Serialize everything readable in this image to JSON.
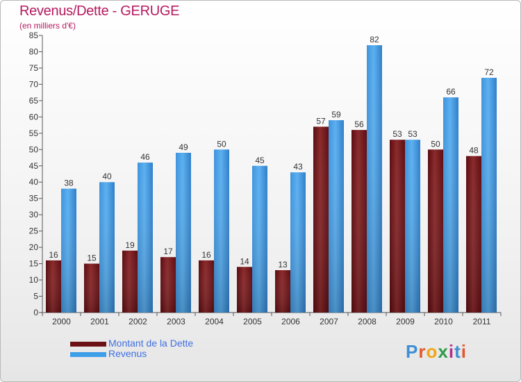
{
  "header": {
    "title": "Revenus/Dette - GERUGE",
    "subtitle": "(en milliers d'€)"
  },
  "colors": {
    "title": "#b5195f",
    "dette": "#6b1014",
    "revenus": "#3f9ee8",
    "legend_text": "#3f6fe0",
    "axis": "#555555"
  },
  "chart_data": {
    "type": "bar",
    "title": "Revenus/Dette - GERUGE",
    "subtitle": "(en milliers d'€)",
    "xlabel": "",
    "ylabel": "",
    "ylim": [
      0,
      85
    ],
    "yticks": [
      0,
      5,
      10,
      15,
      20,
      25,
      30,
      35,
      40,
      45,
      50,
      55,
      60,
      65,
      70,
      75,
      80,
      85
    ],
    "grid": false,
    "legend_position": "bottom-left",
    "categories": [
      "2000",
      "2001",
      "2002",
      "2003",
      "2004",
      "2005",
      "2006",
      "2007",
      "2008",
      "2009",
      "2010",
      "2011"
    ],
    "series": [
      {
        "name": "Montant de la Dette",
        "values": [
          16,
          15,
          19,
          17,
          16,
          14,
          13,
          57,
          56,
          53,
          50,
          48
        ]
      },
      {
        "name": "Revenus",
        "values": [
          38,
          40,
          46,
          49,
          50,
          45,
          43,
          59,
          82,
          53,
          66,
          72
        ]
      }
    ]
  },
  "legend": {
    "items": [
      {
        "label": "Montant de la Dette"
      },
      {
        "label": "Revenus"
      }
    ]
  },
  "logo": {
    "text": "Proxiti",
    "letters": [
      "P",
      "r",
      "o",
      "x",
      "i",
      "t",
      "i"
    ],
    "letter_colors": [
      "#3d8fd6",
      "#e4572e",
      "#f2a516",
      "#2e9b47",
      "#b12d8c",
      "#3d8fd6",
      "#e4572e"
    ]
  }
}
